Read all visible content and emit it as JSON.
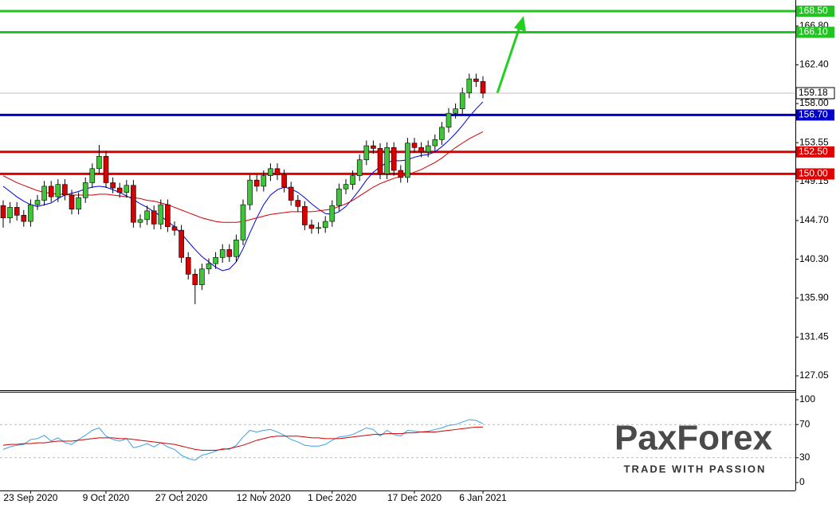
{
  "chart_data": [
    {
      "type": "candlestick",
      "categories": [
        null,
        null,
        null,
        null,
        "23 Sep 2020",
        null,
        null,
        null,
        null,
        null,
        null,
        null,
        null,
        null,
        null,
        "9 Oct 2020",
        null,
        null,
        null,
        null,
        null,
        null,
        null,
        null,
        null,
        null,
        "27 Oct 2020",
        null,
        null,
        null,
        null,
        null,
        null,
        null,
        null,
        null,
        null,
        null,
        "12 Nov 2020",
        null,
        null,
        null,
        null,
        null,
        null,
        null,
        null,
        null,
        "1 Dec 2020",
        null,
        null,
        null,
        null,
        null,
        null,
        null,
        null,
        null,
        null,
        null,
        "17 Dec 2020",
        null,
        null,
        null,
        null,
        null,
        null,
        null,
        null,
        null,
        "6 Jan 2021"
      ],
      "open": [
        146.4,
        145.0,
        146.2,
        145.3,
        144.6,
        146.5,
        147.0,
        148.6,
        147.4,
        148.8,
        147.6,
        146.0,
        147.3,
        149.0,
        150.6,
        152.0,
        149.0,
        148.4,
        147.9,
        148.7,
        144.5,
        144.8,
        145.8,
        144.3,
        146.5,
        144.0,
        143.6,
        140.5,
        138.6,
        137.4,
        139.2,
        139.8,
        140.5,
        141.4,
        140.6,
        142.5,
        146.5,
        149.3,
        148.6,
        149.8,
        150.6,
        149.9,
        148.5,
        147.0,
        146.3,
        144.2,
        143.8,
        143.9,
        144.6,
        146.4,
        148.3,
        148.8,
        149.8,
        151.6,
        153.2,
        152.9,
        150.0,
        153.0,
        150.4,
        149.6,
        153.5,
        153.0,
        152.5,
        153.2,
        153.9,
        155.3,
        156.9,
        157.4,
        159.2,
        160.8,
        160.5
      ],
      "high": [
        147.0,
        146.8,
        146.8,
        145.9,
        147.1,
        147.6,
        149.2,
        149.2,
        149.4,
        149.4,
        148.2,
        147.9,
        149.6,
        151.2,
        153.3,
        152.6,
        149.6,
        149.0,
        149.3,
        149.3,
        145.4,
        146.4,
        146.4,
        147.1,
        147.1,
        144.6,
        144.2,
        141.1,
        139.2,
        139.8,
        140.4,
        141.1,
        142.0,
        142.0,
        143.1,
        147.1,
        149.9,
        149.9,
        150.4,
        151.2,
        151.2,
        150.5,
        149.1,
        147.6,
        146.9,
        144.8,
        144.5,
        145.2,
        147.0,
        148.9,
        149.4,
        150.4,
        152.2,
        153.8,
        153.8,
        153.5,
        153.6,
        153.6,
        151.0,
        154.1,
        154.1,
        153.6,
        153.8,
        154.5,
        155.9,
        157.5,
        158.0,
        159.8,
        161.4,
        161.4,
        161.1
      ],
      "low": [
        143.9,
        144.4,
        144.7,
        144.0,
        144.0,
        145.9,
        146.4,
        146.8,
        146.8,
        147.0,
        145.4,
        145.4,
        146.7,
        148.4,
        150.0,
        148.4,
        147.8,
        147.3,
        147.3,
        143.9,
        143.9,
        144.2,
        143.7,
        143.7,
        143.4,
        143.0,
        139.9,
        138.0,
        135.2,
        136.8,
        138.6,
        139.2,
        139.9,
        140.0,
        140.0,
        141.9,
        145.9,
        148.0,
        148.0,
        149.2,
        149.3,
        147.9,
        146.4,
        145.7,
        143.6,
        143.2,
        143.2,
        143.3,
        144.0,
        145.8,
        147.7,
        148.2,
        149.2,
        151.0,
        152.3,
        149.4,
        149.4,
        149.8,
        149.0,
        149.0,
        152.4,
        151.9,
        151.9,
        152.6,
        153.3,
        154.7,
        156.3,
        156.8,
        158.6,
        159.9,
        158.6
      ],
      "close": [
        145.0,
        146.2,
        145.3,
        144.6,
        146.5,
        147.0,
        148.6,
        147.4,
        148.8,
        147.6,
        146.0,
        147.3,
        149.0,
        150.6,
        152.0,
        149.0,
        148.4,
        147.9,
        148.7,
        144.5,
        144.8,
        145.8,
        144.3,
        146.5,
        144.0,
        143.6,
        140.5,
        138.6,
        137.4,
        139.2,
        139.8,
        140.5,
        141.4,
        140.6,
        142.5,
        146.5,
        149.3,
        148.6,
        149.8,
        150.6,
        149.9,
        148.5,
        147.0,
        146.3,
        144.2,
        143.8,
        143.9,
        144.6,
        146.4,
        148.3,
        148.8,
        149.8,
        151.6,
        153.2,
        152.9,
        150.0,
        153.0,
        150.4,
        149.6,
        153.5,
        153.0,
        152.5,
        153.2,
        153.9,
        155.3,
        156.9,
        157.4,
        159.2,
        160.8,
        160.5,
        159.18
      ],
      "up_color": "#3fc43a",
      "down_color": "#d80000",
      "series": [
        {
          "color": "#0000e0",
          "values": [
            148.6,
            148.0,
            147.4,
            146.9,
            146.5,
            146.3,
            146.5,
            146.7,
            147.2,
            147.6,
            147.8,
            148.0,
            148.3,
            148.5,
            148.6,
            148.5,
            148.2,
            147.9,
            147.5,
            147.1,
            146.6,
            146.2,
            145.7,
            145.2,
            144.6,
            144.0,
            143.2,
            142.3,
            141.4,
            140.6,
            140.0,
            139.4,
            139.0,
            139.2,
            140.0,
            141.5,
            143.3,
            145.0,
            146.5,
            147.6,
            148.2,
            148.5,
            148.3,
            147.9,
            147.3,
            146.6,
            146.0,
            145.5,
            145.4,
            145.7,
            146.3,
            147.2,
            148.2,
            149.3,
            150.2,
            150.8,
            151.3,
            151.5,
            151.5,
            151.6,
            151.9,
            152.1,
            152.2,
            152.5,
            153.1,
            153.8,
            154.6,
            155.5,
            156.5,
            157.4,
            158.2
          ]
        },
        {
          "color": "#d00000",
          "values": [
            149.8,
            149.4,
            149.0,
            148.7,
            148.4,
            148.1,
            147.9,
            147.8,
            147.7,
            147.7,
            147.6,
            147.6,
            147.6,
            147.6,
            147.7,
            147.7,
            147.6,
            147.5,
            147.4,
            147.3,
            147.2,
            147.0,
            146.9,
            146.7,
            146.5,
            146.2,
            145.9,
            145.6,
            145.3,
            145.0,
            144.8,
            144.6,
            144.5,
            144.5,
            144.5,
            144.6,
            144.8,
            145.0,
            145.2,
            145.4,
            145.5,
            145.6,
            145.7,
            145.7,
            145.7,
            145.7,
            145.8,
            145.9,
            146.0,
            146.3,
            146.6,
            147.0,
            147.5,
            148.0,
            148.5,
            148.9,
            149.2,
            149.5,
            149.7,
            149.9,
            150.2,
            150.5,
            150.9,
            151.3,
            151.8,
            152.4,
            153.0,
            153.5,
            154.0,
            154.4,
            154.8
          ]
        }
      ],
      "levels": [
        {
          "value": 168.5,
          "label": "168.50",
          "color": "#22c422"
        },
        {
          "value": 166.1,
          "label": "166.10",
          "color": "#22c422"
        },
        {
          "value": 159.18,
          "label": "159.18",
          "color": "#c0c0c0"
        },
        {
          "value": 156.7,
          "label": "156.70",
          "color": "#0000c8"
        },
        {
          "value": 152.5,
          "label": "152.50",
          "color": "#e00000"
        },
        {
          "value": 150.0,
          "label": "150.00",
          "color": "#e00000"
        }
      ],
      "ylim": [
        125.42,
        169.77
      ],
      "yticks": [
        {
          "value": 166.8,
          "label": "166.80"
        },
        {
          "value": 162.4,
          "label": "162.40"
        },
        {
          "value": 158.0,
          "label": "158.00"
        },
        {
          "value": 153.55,
          "label": "153.55"
        },
        {
          "value": 149.15,
          "label": "149.15"
        },
        {
          "value": 144.7,
          "label": "144.70"
        },
        {
          "value": 140.3,
          "label": "140.30"
        },
        {
          "value": 135.9,
          "label": "135.90"
        },
        {
          "value": 131.45,
          "label": "131.45"
        },
        {
          "value": 127.05,
          "label": "127.05"
        }
      ]
    },
    {
      "type": "line",
      "series": [
        {
          "color": "#3aa0e8",
          "values": [
            40,
            43,
            45,
            46,
            52,
            53,
            57,
            50,
            54,
            48,
            46,
            52,
            57,
            63,
            66,
            56,
            52,
            50,
            53,
            42,
            44,
            47,
            43,
            48,
            43,
            40,
            33,
            29,
            27,
            33,
            35,
            38,
            41,
            40,
            45,
            55,
            63,
            61,
            63,
            64,
            61,
            57,
            52,
            49,
            45,
            44,
            44,
            46,
            51,
            55,
            56,
            58,
            62,
            66,
            64,
            56,
            63,
            58,
            56,
            63,
            62,
            61,
            62,
            64,
            66,
            69,
            70,
            73,
            76,
            75,
            71
          ]
        },
        {
          "color": "#d00000",
          "values": [
            45,
            46,
            46,
            47,
            47,
            48,
            48,
            49,
            50,
            50,
            50,
            51,
            52,
            53,
            54,
            54,
            54,
            53,
            53,
            52,
            51,
            50,
            49,
            48,
            47,
            46,
            44,
            42,
            40,
            39,
            39,
            39,
            40,
            41,
            43,
            45,
            48,
            51,
            53,
            55,
            56,
            56,
            56,
            56,
            55,
            54,
            54,
            53,
            53,
            53,
            54,
            55,
            56,
            57,
            58,
            58,
            59,
            59,
            59,
            60,
            60,
            61,
            61,
            61,
            62,
            63,
            64,
            65,
            66,
            67,
            67
          ]
        }
      ],
      "ylim": [
        -9.6,
        109.6
      ],
      "yticks": [
        100,
        70,
        30,
        0
      ]
    }
  ],
  "logo": {
    "name": "PaxForex",
    "tagline": "TRADE WITH PASSION"
  }
}
